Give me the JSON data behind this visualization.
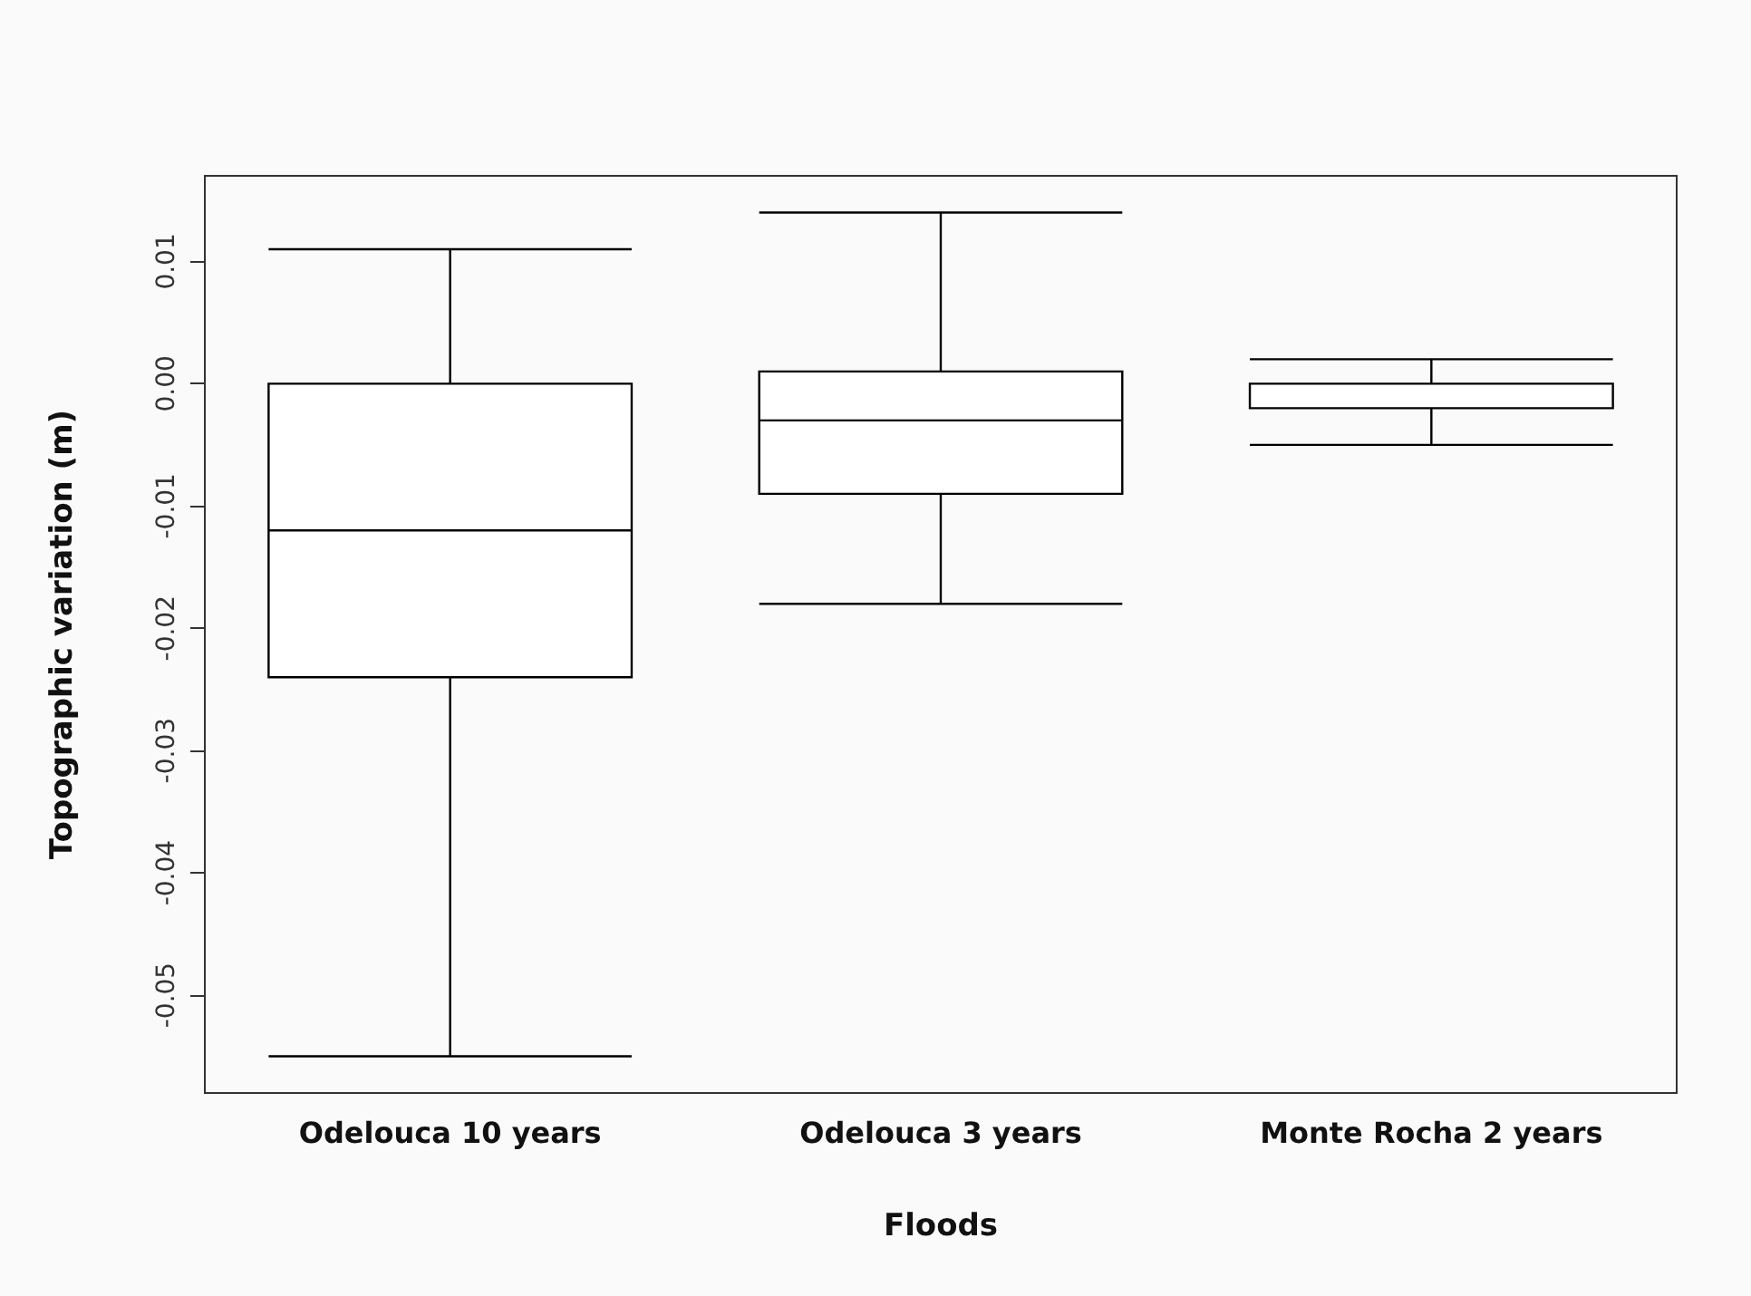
{
  "chart_data": {
    "type": "box",
    "xlabel": "Floods",
    "ylabel": "Topographic variation (m)",
    "categories": [
      "Odelouca 10 years",
      "Odelouca 3 years",
      "Monte Rocha 2 years"
    ],
    "boxes": [
      {
        "low": -0.055,
        "q1": -0.024,
        "median": -0.012,
        "q3": 0.0,
        "high": 0.011
      },
      {
        "low": -0.018,
        "q1": -0.009,
        "median": -0.003,
        "q3": 0.001,
        "high": 0.014
      },
      {
        "low": -0.005,
        "q1": -0.002,
        "median": 0.0,
        "q3": 0.0,
        "high": 0.002
      }
    ],
    "color": "#000000",
    "ylim": [
      -0.058,
      0.017
    ],
    "yticks": [
      {
        "value": -0.05,
        "label": "-0.05"
      },
      {
        "value": -0.04,
        "label": "-0.04"
      },
      {
        "value": -0.03,
        "label": "-0.03"
      },
      {
        "value": -0.02,
        "label": "-0.02"
      },
      {
        "value": -0.01,
        "label": "-0.01"
      },
      {
        "value": 0,
        "label": "0.00"
      },
      {
        "value": 0.01,
        "label": "0.01"
      }
    ],
    "grid": false
  }
}
